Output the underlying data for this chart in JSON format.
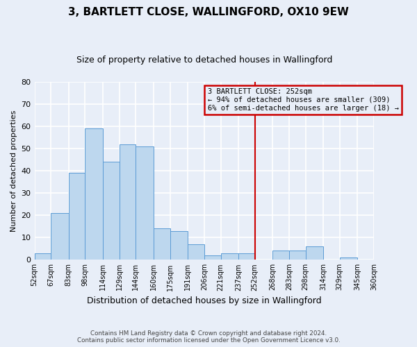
{
  "title": "3, BARTLETT CLOSE, WALLINGFORD, OX10 9EW",
  "subtitle": "Size of property relative to detached houses in Wallingford",
  "xlabel": "Distribution of detached houses by size in Wallingford",
  "ylabel": "Number of detached properties",
  "footer_line1": "Contains HM Land Registry data © Crown copyright and database right 2024.",
  "footer_line2": "Contains public sector information licensed under the Open Government Licence v3.0.",
  "bin_edges": [
    52,
    67,
    83,
    98,
    114,
    129,
    144,
    160,
    175,
    191,
    206,
    221,
    237,
    252,
    268,
    283,
    298,
    314,
    329,
    345,
    360
  ],
  "bar_heights": [
    3,
    21,
    39,
    59,
    44,
    52,
    51,
    14,
    13,
    7,
    2,
    3,
    3,
    0,
    4,
    4,
    6,
    0,
    1,
    0
  ],
  "bar_color": "#bdd7ee",
  "bar_edge_color": "#5b9bd5",
  "marker_value": 252,
  "marker_color": "#cc0000",
  "ylim": [
    0,
    80
  ],
  "yticks": [
    0,
    10,
    20,
    30,
    40,
    50,
    60,
    70,
    80
  ],
  "annotation_title": "3 BARTLETT CLOSE: 252sqm",
  "annotation_line1": "← 94% of detached houses are smaller (309)",
  "annotation_line2": "6% of semi-detached houses are larger (18) →",
  "annotation_box_color": "#cc0000",
  "annotation_text_color": "#000000",
  "background_color": "#e8eef8",
  "grid_color": "#ffffff",
  "title_fontsize": 11,
  "subtitle_fontsize": 9
}
